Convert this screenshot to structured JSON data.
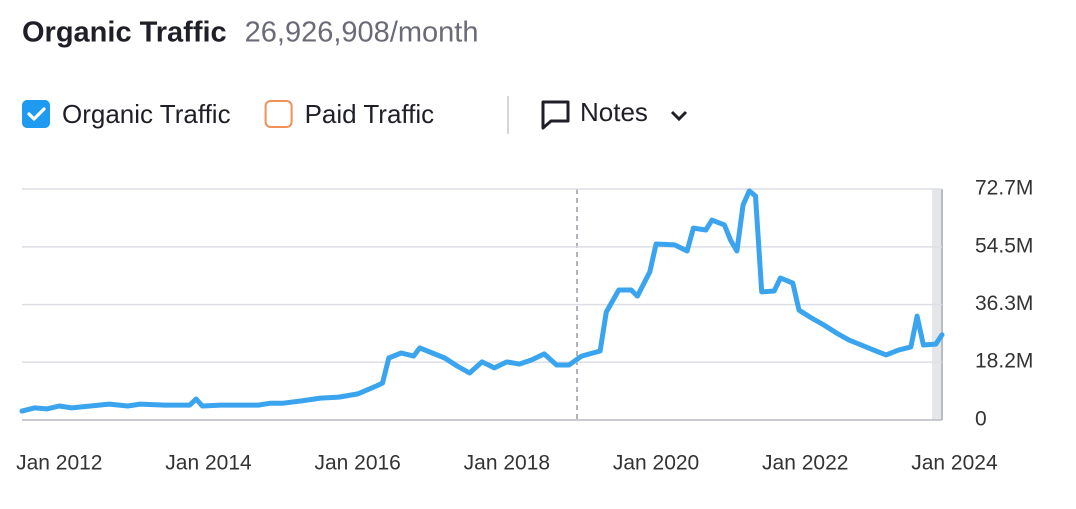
{
  "chart_data": {
    "type": "line",
    "title": "Organic Traffic",
    "subtitle": "26,926,908/month",
    "toggles": [
      {
        "label": "Organic Traffic",
        "checked": true,
        "color": "#1e9bf0"
      },
      {
        "label": "Paid Traffic",
        "checked": false,
        "color": "#f0905a"
      }
    ],
    "notes_button": "Notes",
    "x": [
      "2011-07",
      "2011-09",
      "2011-11",
      "2012-01",
      "2012-03",
      "2012-06",
      "2012-09",
      "2012-12",
      "2013-02",
      "2013-06",
      "2013-10",
      "2013-11",
      "2013-12",
      "2014-03",
      "2014-06",
      "2014-09",
      "2014-11",
      "2015-01",
      "2015-04",
      "2015-07",
      "2015-10",
      "2016-01",
      "2016-04",
      "2016-05",
      "2016-06",
      "2016-08",
      "2016-10",
      "2016-11",
      "2017-01",
      "2017-03",
      "2017-05",
      "2017-07",
      "2017-09",
      "2017-11",
      "2018-01",
      "2018-03",
      "2018-05",
      "2018-07",
      "2018-09",
      "2018-11",
      "2019-01",
      "2019-04",
      "2019-05",
      "2019-07",
      "2019-09",
      "2019-10",
      "2019-12",
      "2020-01",
      "2020-04",
      "2020-06",
      "2020-07",
      "2020-09",
      "2020-10",
      "2020-12",
      "2021-01",
      "2021-02",
      "2021-03",
      "2021-04",
      "2021-05",
      "2021-06",
      "2021-08",
      "2021-09",
      "2021-11",
      "2021-12",
      "2022-02",
      "2022-04",
      "2022-06",
      "2022-08",
      "2022-10",
      "2022-12",
      "2023-02",
      "2023-04",
      "2023-06",
      "2023-07",
      "2023-08",
      "2023-10",
      "2023-11"
    ],
    "series": [
      {
        "name": "Organic Traffic",
        "color": "#3ba4ee",
        "values": [
          2.8,
          3.8,
          3.5,
          4.4,
          3.8,
          4.4,
          5.0,
          4.4,
          5.0,
          4.7,
          4.7,
          6.6,
          4.4,
          4.7,
          4.7,
          4.7,
          5.3,
          5.3,
          6.0,
          6.9,
          7.2,
          8.2,
          10.7,
          11.6,
          19.5,
          21.1,
          20.1,
          22.7,
          21.1,
          19.5,
          17.0,
          14.8,
          18.3,
          16.4,
          18.3,
          17.6,
          18.9,
          20.8,
          17.3,
          17.3,
          20.1,
          21.7,
          34.0,
          40.9,
          40.9,
          39.0,
          46.6,
          55.4,
          55.1,
          53.2,
          60.4,
          59.8,
          62.9,
          61.4,
          56.6,
          53.2,
          67.7,
          72.1,
          70.5,
          40.3,
          40.6,
          44.7,
          43.1,
          34.6,
          32.1,
          29.9,
          27.4,
          25.2,
          23.6,
          22.0,
          20.5,
          22.0,
          23.0,
          32.7,
          23.6,
          23.9,
          26.8
        ]
      }
    ],
    "xlim": [
      "2011-07",
      "2023-11"
    ],
    "xticks": [
      {
        "value": "2012-01",
        "label": "Jan 2012"
      },
      {
        "value": "2014-01",
        "label": "Jan 2014"
      },
      {
        "value": "2016-01",
        "label": "Jan 2016"
      },
      {
        "value": "2018-01",
        "label": "Jan 2018"
      },
      {
        "value": "2020-01",
        "label": "Jan 2020"
      },
      {
        "value": "2022-01",
        "label": "Jan 2022"
      },
      {
        "value": "2024-01",
        "label": "Jan 2024"
      }
    ],
    "ylim": [
      0,
      72.7
    ],
    "yticks": [
      0,
      {
        "value": 18.2,
        "label": "18.2M"
      },
      {
        "value": 36.3,
        "label": "36.3M"
      },
      {
        "value": 54.5,
        "label": "54.5M"
      },
      {
        "value": 72.7,
        "label": "72.7M"
      }
    ],
    "grid": true
  }
}
